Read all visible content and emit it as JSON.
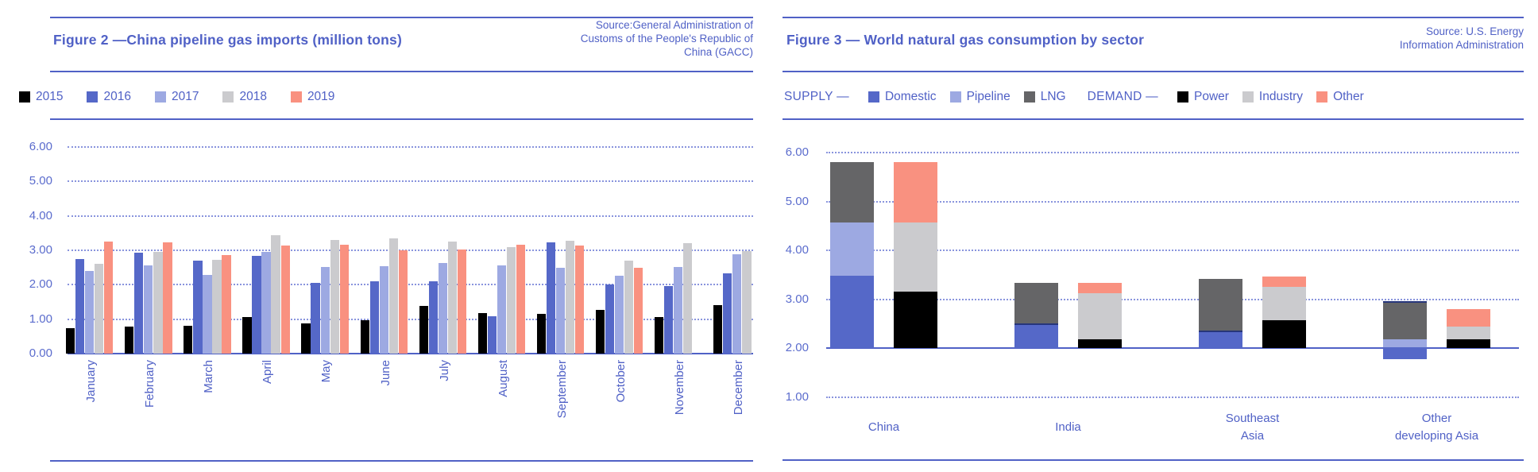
{
  "accent_color": "#5061c6",
  "grid_color": "#8994dd",
  "divider_color": "#27367c",
  "figure2": {
    "title": "Figure 2 —China pipeline gas imports (million tons)",
    "source": "Source:General Administration of\nCustoms of the People's Republic of\nChina (GACC)"
  },
  "figure3": {
    "title": "Figure 3 — World natural gas consumption by sector",
    "source": "Source: U.S. Energy\nInformation Administration",
    "legend": {
      "supply_label": "SUPPLY —",
      "demand_label": "DEMAND —",
      "supply_items": [
        "Domestic",
        "Pipeline",
        "LNG"
      ],
      "demand_items": [
        "Power",
        "Industry",
        "Other"
      ]
    }
  },
  "chart_data": [
    {
      "type": "bar",
      "title": "Figure 2 —China pipeline gas imports (million tons)",
      "categories": [
        "January",
        "February",
        "March",
        "April",
        "May",
        "June",
        "July",
        "August",
        "September",
        "October",
        "November",
        "December"
      ],
      "series": [
        {
          "name": "2015",
          "color": "#000000",
          "values": [
            0.75,
            0.78,
            0.8,
            1.06,
            0.87,
            0.96,
            1.38,
            1.18,
            1.16,
            1.28,
            1.06,
            1.41
          ]
        },
        {
          "name": "2016",
          "color": "#5568c8",
          "values": [
            2.75,
            2.92,
            2.7,
            2.83,
            2.06,
            2.09,
            2.1,
            1.09,
            3.23,
            2.0,
            1.96,
            2.33
          ]
        },
        {
          "name": "2017",
          "color": "#9da9e2",
          "values": [
            2.4,
            2.57,
            2.28,
            2.95,
            2.52,
            2.54,
            2.63,
            2.56,
            2.5,
            2.26,
            2.52,
            2.89
          ]
        },
        {
          "name": "2018",
          "color": "#cbcbce",
          "values": [
            2.6,
            2.96,
            2.72,
            3.44,
            3.29,
            3.35,
            3.26,
            3.1,
            3.27,
            2.7,
            3.21,
            2.97
          ]
        },
        {
          "name": "2019",
          "color": "#f99180",
          "values": [
            3.25,
            3.23,
            2.86,
            3.14,
            3.17,
            3.01,
            3.02,
            3.16,
            3.15,
            2.5,
            null,
            null
          ]
        }
      ],
      "ylim": [
        0,
        6
      ],
      "yticks": [
        {
          "label": "6.00",
          "value": 6
        },
        {
          "label": "5.00",
          "value": 5
        },
        {
          "label": "4.00",
          "value": 4
        },
        {
          "label": "3.00",
          "value": 3
        },
        {
          "label": "2.00",
          "value": 2
        },
        {
          "label": "1.00",
          "value": 1
        },
        {
          "label": "0.00",
          "value": 0
        }
      ],
      "grid": "dotted-horizontal",
      "legend_position": "top",
      "x_label_rotation": -90
    },
    {
      "type": "stacked-bar",
      "title": "Figure 3 — World natural gas consumption by sector",
      "colors": {
        "Domestic": "#5568c8",
        "Pipeline": "#9da9e2",
        "LNG": "#656567",
        "Power": "#000000",
        "Industry": "#cbcbce",
        "Other": "#f99180"
      },
      "axis_baseline": 2.0,
      "ylim": [
        1,
        6
      ],
      "yticks": [
        {
          "label": "6.00",
          "value": 6
        },
        {
          "label": "5.00",
          "value": 5
        },
        {
          "label": "4.00",
          "value": 4
        },
        {
          "label": "3.00",
          "value": 3
        },
        {
          "label": "2.00",
          "value": 2
        },
        {
          "label": "1.00",
          "value": 1
        }
      ],
      "grid": "dotted-horizontal",
      "groups": [
        {
          "label_lines": [
            "China"
          ],
          "bars": [
            {
              "role": "supply",
              "segments": [
                {
                  "name": "Domestic",
                  "from": 2.0,
                  "to": 3.48
                },
                {
                  "name": "Pipeline",
                  "from": 3.48,
                  "to": 4.57
                },
                {
                  "name": "LNG",
                  "from": 4.57,
                  "to": 5.8
                }
              ]
            },
            {
              "role": "demand",
              "segments": [
                {
                  "name": "Power",
                  "from": 2.0,
                  "to": 3.15
                },
                {
                  "name": "Industry",
                  "from": 3.15,
                  "to": 4.57
                },
                {
                  "name": "Other",
                  "from": 4.57,
                  "to": 5.8
                }
              ]
            }
          ]
        },
        {
          "label_lines": [
            "India"
          ],
          "bars": [
            {
              "role": "supply",
              "segments": [
                {
                  "name": "Domestic",
                  "from": 2.0,
                  "to": 2.5,
                  "divider_top": true
                },
                {
                  "name": "LNG",
                  "from": 2.5,
                  "to": 3.33
                }
              ]
            },
            {
              "role": "demand",
              "segments": [
                {
                  "name": "Power",
                  "from": 2.0,
                  "to": 2.18
                },
                {
                  "name": "Industry",
                  "from": 2.18,
                  "to": 3.12
                },
                {
                  "name": "Other",
                  "from": 3.12,
                  "to": 3.33
                }
              ]
            }
          ]
        },
        {
          "label_lines": [
            "Southeast",
            "Asia"
          ],
          "bars": [
            {
              "role": "supply",
              "segments": [
                {
                  "name": "Domestic",
                  "from": 2.0,
                  "to": 2.36,
                  "divider_top": true
                },
                {
                  "name": "LNG",
                  "from": 2.36,
                  "to": 3.42
                }
              ]
            },
            {
              "role": "demand",
              "segments": [
                {
                  "name": "Power",
                  "from": 2.0,
                  "to": 2.57
                },
                {
                  "name": "Industry",
                  "from": 2.57,
                  "to": 3.25
                },
                {
                  "name": "Other",
                  "from": 3.25,
                  "to": 3.46
                }
              ]
            }
          ]
        },
        {
          "label_lines": [
            "Other",
            "developing Asia"
          ],
          "bars": [
            {
              "role": "supply",
              "segments": [
                {
                  "name": "Domestic",
                  "from": 1.77,
                  "to": 2.02
                },
                {
                  "name": "Pipeline",
                  "from": 2.02,
                  "to": 2.18,
                  "divider_top_above": true
                },
                {
                  "name": "LNG",
                  "from": 2.18,
                  "to": 2.96,
                  "divider_top": true
                }
              ]
            },
            {
              "role": "demand",
              "segments": [
                {
                  "name": "Power",
                  "from": 2.0,
                  "to": 2.18
                },
                {
                  "name": "Industry",
                  "from": 2.18,
                  "to": 2.44
                },
                {
                  "name": "Other",
                  "from": 2.44,
                  "to": 2.8
                }
              ]
            }
          ]
        }
      ]
    }
  ]
}
